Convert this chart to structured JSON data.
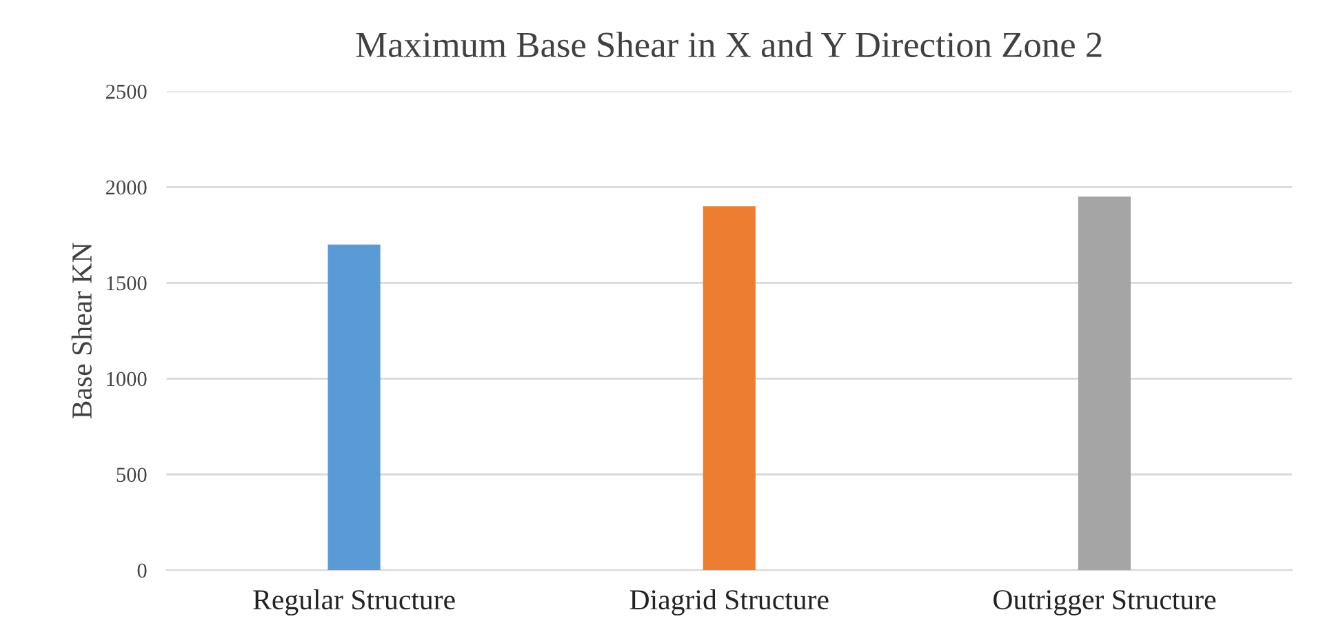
{
  "chart_data": {
    "type": "bar",
    "title": "Maximum Base Shear in X and Y Direction Zone 2",
    "ylabel": "Base Shear KN",
    "categories": [
      "Regular Structure",
      "Diagrid Structure",
      "Outrigger Structure"
    ],
    "values": [
      1700,
      1900,
      1950
    ],
    "colors": [
      "#5b9bd5",
      "#ed7d31",
      "#a5a5a5"
    ],
    "ylim": [
      0,
      2500
    ],
    "yticks": [
      0,
      500,
      1000,
      1500,
      2000,
      2500
    ],
    "grid": "y",
    "legend": false
  }
}
